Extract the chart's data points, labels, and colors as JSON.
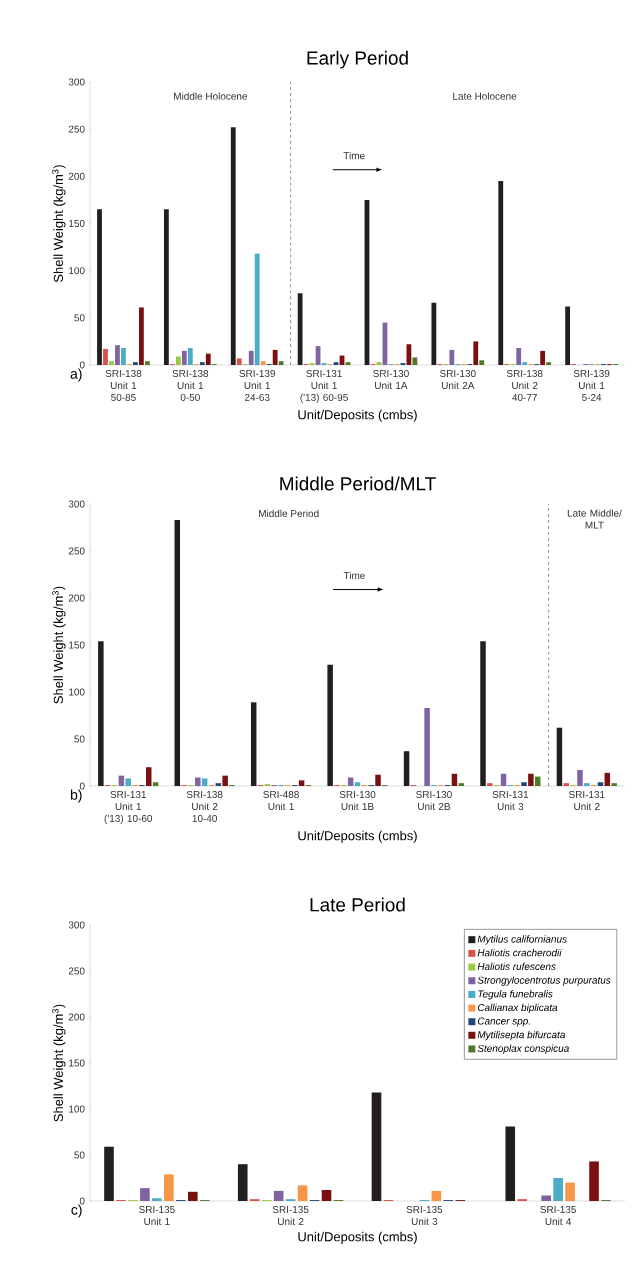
{
  "chart_data": [
    {
      "type": "bar",
      "title": "Early Period",
      "xlabel": "Unit/Deposits (cmbs)",
      "ylabel": "Shell Weight (kg/m$^{3}$)",
      "categories": [
        "SRI-138 Unit 1 50-85",
        "SRI-138 Unit 1 0-50",
        "SRI-139 Unit 1 24-63",
        "SRI-131 Unit 1 ('13) 60-95",
        "SRI-130 Unit 1A",
        "SRI-130 Unit 2A",
        "SRI-138 Unit 2 40-77",
        "SRI-139 Unit 1 5-24"
      ],
      "series": [
        {
          "color": "#231f20",
          "values": [
            165,
            165,
            252,
            76,
            175,
            66,
            195,
            62
          ]
        },
        {
          "color": "#d9534a",
          "values": [
            17,
            1,
            7,
            1,
            1,
            1,
            1,
            1
          ]
        },
        {
          "color": "#9bc940",
          "values": [
            4,
            9,
            1,
            2,
            3,
            1,
            1,
            0
          ]
        },
        {
          "color": "#8064a2",
          "values": [
            21,
            15,
            15,
            20,
            45,
            16,
            18,
            1
          ]
        },
        {
          "color": "#4bacc6",
          "values": [
            18,
            18,
            118,
            2,
            1,
            1,
            3,
            1
          ]
        },
        {
          "color": "#f79646",
          "values": [
            1,
            1,
            4,
            1,
            1,
            1,
            1,
            1
          ]
        },
        {
          "color": "#1f497d",
          "values": [
            3,
            3,
            1,
            3,
            2,
            1,
            1,
            1
          ]
        },
        {
          "color": "#7b1010",
          "values": [
            61,
            12,
            16,
            10,
            22,
            25,
            15,
            1
          ]
        },
        {
          "color": "#4f7a28",
          "values": [
            4,
            1,
            4,
            3,
            8,
            5,
            3,
            1
          ]
        }
      ],
      "ylim": [
        0,
        300
      ],
      "yticks": [
        0,
        50,
        100,
        150,
        200,
        250,
        300
      ],
      "annotations": [
        "Middle Holocene",
        "Late Holocene",
        "Time",
        "a)"
      ]
    },
    {
      "type": "bar",
      "title": "Middle Period/MLT",
      "xlabel": "Unit/Deposits (cmbs)",
      "ylabel": "Shell Weight (kg/m$^{3}$)",
      "categories": [
        "SRI-131 Unit 1 ('13) 10-60",
        "SRI-138 Unit 2 10-40",
        "SRI-488 Unit 1",
        "SRI-130 Unit 1B",
        "SRI-130 Unit 2B",
        "SRI-131 Unit 3",
        "SRI-131 Unit 2"
      ],
      "series": [
        {
          "color": "#231f20",
          "values": [
            154,
            283,
            89,
            129,
            37,
            154,
            62
          ]
        },
        {
          "color": "#d9534a",
          "values": [
            1,
            1,
            1,
            1,
            1,
            3,
            3
          ]
        },
        {
          "color": "#9bc940",
          "values": [
            1,
            1,
            2,
            1,
            0,
            1,
            1
          ]
        },
        {
          "color": "#8064a2",
          "values": [
            11,
            9,
            1,
            9,
            83,
            13,
            17
          ]
        },
        {
          "color": "#4bacc6",
          "values": [
            8,
            8,
            1,
            4,
            1,
            1,
            3
          ]
        },
        {
          "color": "#f79646",
          "values": [
            1,
            1,
            1,
            1,
            1,
            1,
            1
          ]
        },
        {
          "color": "#1f497d",
          "values": [
            1,
            3,
            1,
            1,
            1,
            4,
            4
          ]
        },
        {
          "color": "#7b1010",
          "values": [
            20,
            11,
            6,
            12,
            13,
            13,
            14
          ]
        },
        {
          "color": "#4f7a28",
          "values": [
            4,
            1,
            1,
            1,
            3,
            10,
            3
          ]
        }
      ],
      "ylim": [
        0,
        300
      ],
      "yticks": [
        0,
        50,
        100,
        150,
        200,
        250,
        300
      ],
      "annotations": [
        "Middle Period",
        "Late Middle/ MLT",
        "Time",
        "b)"
      ]
    },
    {
      "type": "bar",
      "title": "Late Period",
      "xlabel": "Unit/Deposits (cmbs)",
      "ylabel": "Shell Weight (kg/m$^{3}$)",
      "categories": [
        "SRI-135 Unit 1",
        "SRI-135 Unit 2",
        "SRI-135 Unit 3",
        "SRI-135 Unit 4"
      ],
      "series": [
        {
          "name": "Mytilus californianus",
          "color": "#231f20",
          "values": [
            59,
            40,
            118,
            81
          ]
        },
        {
          "name": "Haliotis cracherodii",
          "color": "#d9534a",
          "values": [
            1,
            2,
            1,
            2
          ]
        },
        {
          "name": "Haliotis rufescens",
          "color": "#9bc940",
          "values": [
            1,
            1,
            0,
            0
          ]
        },
        {
          "name": "Strongylocentrotus purpuratus",
          "color": "#8064a2",
          "values": [
            14,
            11,
            0,
            6
          ]
        },
        {
          "name": "Tegula funebralis",
          "color": "#4bacc6",
          "values": [
            3,
            2,
            1,
            25
          ]
        },
        {
          "name": "Callianax biplicata",
          "color": "#f79646",
          "values": [
            29,
            17,
            11,
            20
          ]
        },
        {
          "name": "*Cancer* spp.",
          "color": "#1f497d",
          "values": [
            1,
            1,
            1,
            0
          ]
        },
        {
          "name": "Mytilisepta bifurcata",
          "color": "#7b1010",
          "values": [
            10,
            12,
            1,
            43
          ]
        },
        {
          "name": "Stenoplax conspicua",
          "color": "#4f7a28",
          "values": [
            1,
            1,
            0,
            1
          ]
        }
      ],
      "ylim": [
        0,
        300
      ],
      "yticks": [
        0,
        50,
        100,
        150,
        200,
        250,
        300
      ],
      "legend": "top right",
      "annotations": [
        "c)"
      ]
    }
  ]
}
